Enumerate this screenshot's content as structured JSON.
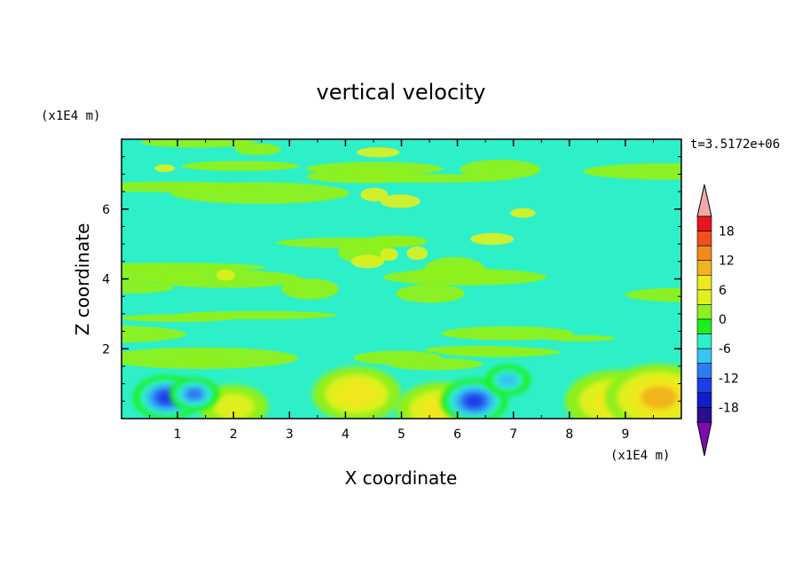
{
  "chart_data": {
    "type": "heatmap",
    "title": "vertical velocity",
    "xlabel": "X coordinate",
    "ylabel": "Z coordinate",
    "x_unit": "(x1E4 m)",
    "y_unit": "(x1E4 m)",
    "time_label": "t=3.5172e+06",
    "xlim": [
      0,
      10
    ],
    "ylim": [
      0,
      8
    ],
    "x_ticks": [
      1,
      2,
      3,
      4,
      5,
      6,
      7,
      8,
      9
    ],
    "y_ticks": [
      2,
      4,
      6
    ],
    "colorbar": {
      "levels": [
        -21,
        -18,
        -15,
        -12,
        -9,
        -6,
        -3,
        0,
        3,
        6,
        9,
        12,
        15,
        18,
        21
      ],
      "tick_labels": [
        "18",
        "12",
        "6",
        "0",
        "-6",
        "-12",
        "-18"
      ],
      "tick_values": [
        18,
        12,
        6,
        0,
        -6,
        -12,
        -18
      ],
      "colors": [
        "#7e0bb0",
        "#2a0d91",
        "#0e1fc7",
        "#1e3ce8",
        "#2e7cf2",
        "#36c6f0",
        "#2ef0c8",
        "#1af01e",
        "#8ef01e",
        "#dff01e",
        "#f0e81e",
        "#f0b41e",
        "#f08c1e",
        "#f0501e",
        "#e8141e",
        "#f0a8a8"
      ]
    },
    "features": [
      {
        "kind": "updraft",
        "x": 4.2,
        "z": 0.7,
        "value": 8
      },
      {
        "kind": "updraft",
        "x": 5.7,
        "z": 0.25,
        "value": 8
      },
      {
        "kind": "updraft",
        "x": 8.8,
        "z": 0.5,
        "value": 9
      },
      {
        "kind": "updraft",
        "x": 9.6,
        "z": 0.6,
        "value": 10
      },
      {
        "kind": "updraft",
        "x": 2.0,
        "z": 0.35,
        "value": 6
      },
      {
        "kind": "downdraft",
        "x": 0.8,
        "z": 0.6,
        "value": -14
      },
      {
        "kind": "downdraft",
        "x": 1.3,
        "z": 0.7,
        "value": -10
      },
      {
        "kind": "downdraft",
        "x": 6.3,
        "z": 0.5,
        "value": -14
      },
      {
        "kind": "downdraft",
        "x": 6.9,
        "z": 1.1,
        "value": -9
      }
    ]
  }
}
